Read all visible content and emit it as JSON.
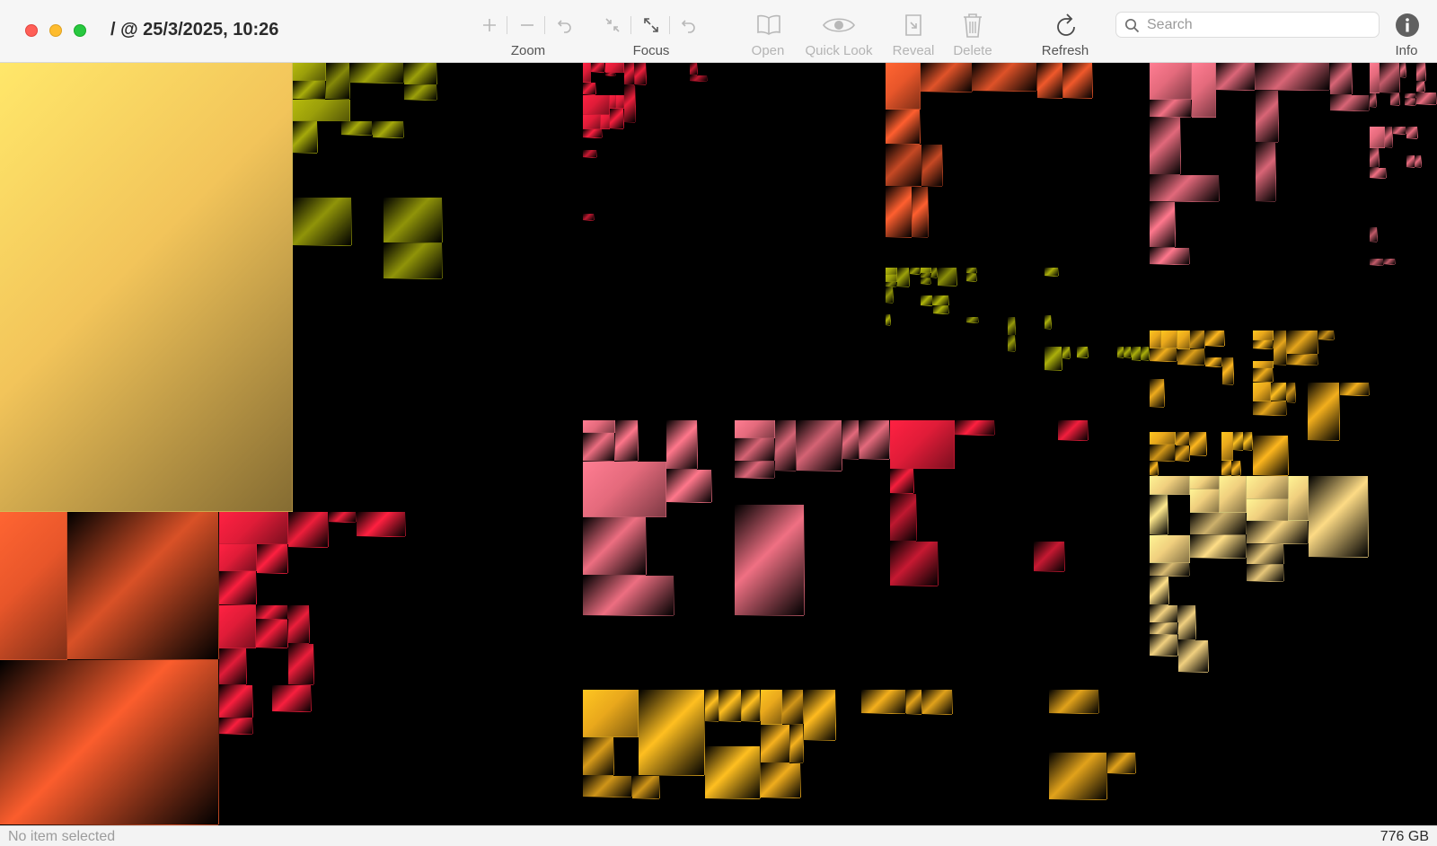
{
  "window": {
    "title": "/ @ 25/3/2025, 10:26"
  },
  "toolbar": {
    "zoom_label": "Zoom",
    "focus_label": "Focus",
    "open_label": "Open",
    "quicklook_label": "Quick Look",
    "reveal_label": "Reveal",
    "delete_label": "Delete",
    "refresh_label": "Refresh",
    "info_label": "Info"
  },
  "search": {
    "placeholder": "Search",
    "value": ""
  },
  "status": {
    "selection": "No item selected",
    "total_size": "776 GB"
  },
  "colors": {
    "accent": "#ff5f57",
    "tile_palette": [
      "#f2c45a",
      "#9a9e0a",
      "#e8562a",
      "#e01c38",
      "#e46a7c",
      "#e9a81c",
      "#f0cf7e",
      "#cc2b17"
    ]
  }
}
